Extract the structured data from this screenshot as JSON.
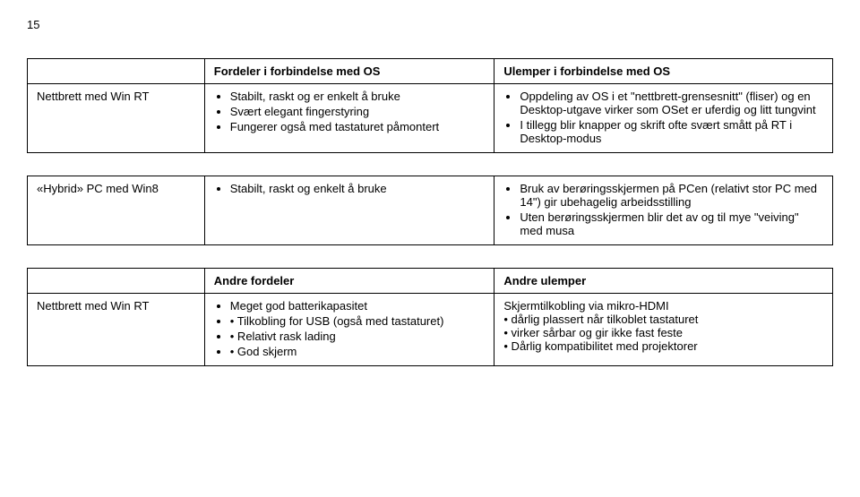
{
  "page_number": "15",
  "table1": {
    "header": {
      "col1": "",
      "col2": "Fordeler i forbindelse med OS",
      "col3": "Ulemper i forbindelse med OS"
    },
    "row1": {
      "label": "Nettbrett med Win RT",
      "pros": [
        "Stabilt, raskt og er enkelt å bruke",
        "Svært elegant fingerstyring",
        "Fungerer også med tastaturet påmontert"
      ],
      "cons": [
        "Oppdeling av OS i et \"nettbrett-grensesnitt\" (fliser) og en Desktop-utgave virker som OSet er uferdig og litt tungvint",
        "I tillegg blir knapper og skrift ofte svært smått på RT i Desktop-modus"
      ]
    }
  },
  "table2": {
    "row1": {
      "label": "«Hybrid» PC med Win8",
      "pros": [
        "Stabilt, raskt og enkelt å bruke"
      ],
      "cons": [
        "Bruk av berøringsskjermen på PCen (relativt stor PC med 14\") gir ubehagelig arbeidsstilling",
        "Uten berøringsskjermen blir det av og til mye \"veiving\" med musa"
      ]
    }
  },
  "table3": {
    "header": {
      "col1": "",
      "col2": "Andre fordeler",
      "col3": "Andre ulemper"
    },
    "row1": {
      "label": "Nettbrett med Win RT",
      "pros": [
        "Meget god batterikapasitet",
        "• Tilkobling for USB (også med tastaturet)",
        "• Relativt rask lading",
        "• God skjerm"
      ],
      "cons_heading": "Skjermtilkobling via mikro-HDMI",
      "cons": [
        "• dårlig plassert når tilkoblet tastaturet",
        "• virker sårbar og gir ikke fast feste",
        "• Dårlig kompatibilitet med projektorer"
      ]
    }
  }
}
